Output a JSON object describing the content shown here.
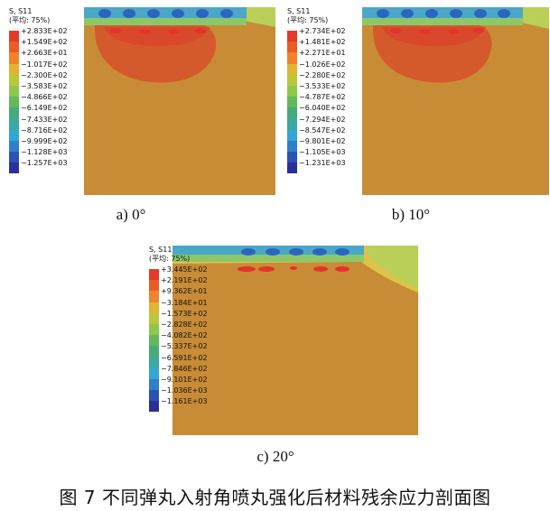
{
  "panels": [
    {
      "id": "a",
      "legend_title": "S, S11",
      "legend_subtitle": "(平均: 75%)",
      "legend_values": [
        "+2.833E+02",
        "+1.549E+02",
        "+2.663E+01",
        "−1.017E+02",
        "−2.300E+02",
        "−3.583E+02",
        "−4.866E+02",
        "−6.149E+02",
        "−7.433E+02",
        "−8.716E+02",
        "−9.999E+02",
        "−1.128E+03",
        "−1.257E+03"
      ],
      "caption": "a) 0°"
    },
    {
      "id": "b",
      "legend_title": "S, S11",
      "legend_subtitle": "(平均: 75%)",
      "legend_values": [
        "+2.734E+02",
        "+1.481E+02",
        "+2.271E+01",
        "−1.026E+02",
        "−2.280E+02",
        "−3.533E+02",
        "−4.787E+02",
        "−6.040E+02",
        "−7.294E+02",
        "−8.547E+02",
        "−9.801E+02",
        "−1.105E+03",
        "−1.231E+03"
      ],
      "caption": "b) 10°"
    },
    {
      "id": "c",
      "legend_title": "S, S11",
      "legend_subtitle": "(平均: 75%)",
      "legend_values": [
        "+3.445E+02",
        "+2.191E+02",
        "+9.362E+01",
        "−3.184E+01",
        "−1.573E+02",
        "−2.828E+02",
        "−4.082E+02",
        "−5.337E+02",
        "−6.591E+02",
        "−7.846E+02",
        "−9.101E+02",
        "−1.036E+03",
        "−1.161E+03"
      ],
      "caption": "c) 20°"
    }
  ],
  "legend_colors": [
    "#e53a2a",
    "#ec5b24",
    "#f2832a",
    "#e0b531",
    "#b8c83a",
    "#8dc84a",
    "#63b85a",
    "#46ab7a",
    "#3aa8a5",
    "#33a6d3",
    "#2f7fcb",
    "#2a52b3",
    "#2b2f9a"
  ],
  "figure_caption": "图 7   不同弹丸入射角喷丸强化后材料残余应力剖面图"
}
